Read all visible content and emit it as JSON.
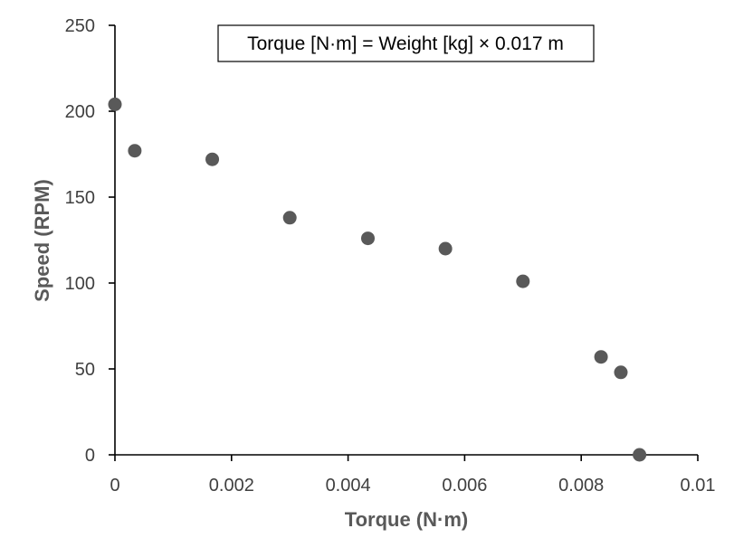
{
  "chart_data": {
    "type": "scatter",
    "xlabel": "Torque (N·m)",
    "ylabel": "Speed (RPM)",
    "xlim": [
      0,
      0.01
    ],
    "ylim": [
      0,
      250
    ],
    "x_ticks": [
      0,
      0.002,
      0.004,
      0.006,
      0.008,
      0.01
    ],
    "x_tick_labels": [
      "0",
      "0.002",
      "0.004",
      "0.006",
      "0.008",
      "0.01"
    ],
    "y_ticks": [
      0,
      50,
      100,
      150,
      200,
      250
    ],
    "y_tick_labels": [
      "0",
      "50",
      "100",
      "150",
      "200",
      "250"
    ],
    "annotation": "Torque [N·m] = Weight [kg] × 0.017 m",
    "grid": false,
    "legend": "none",
    "marker_color": "#595959",
    "points": [
      {
        "x": 0.0,
        "y": 204
      },
      {
        "x": 0.00034,
        "y": 177
      },
      {
        "x": 0.00167,
        "y": 172
      },
      {
        "x": 0.003,
        "y": 138
      },
      {
        "x": 0.00434,
        "y": 126
      },
      {
        "x": 0.00567,
        "y": 120
      },
      {
        "x": 0.007,
        "y": 101
      },
      {
        "x": 0.00834,
        "y": 57
      },
      {
        "x": 0.00868,
        "y": 48
      },
      {
        "x": 0.009,
        "y": 0
      }
    ]
  }
}
